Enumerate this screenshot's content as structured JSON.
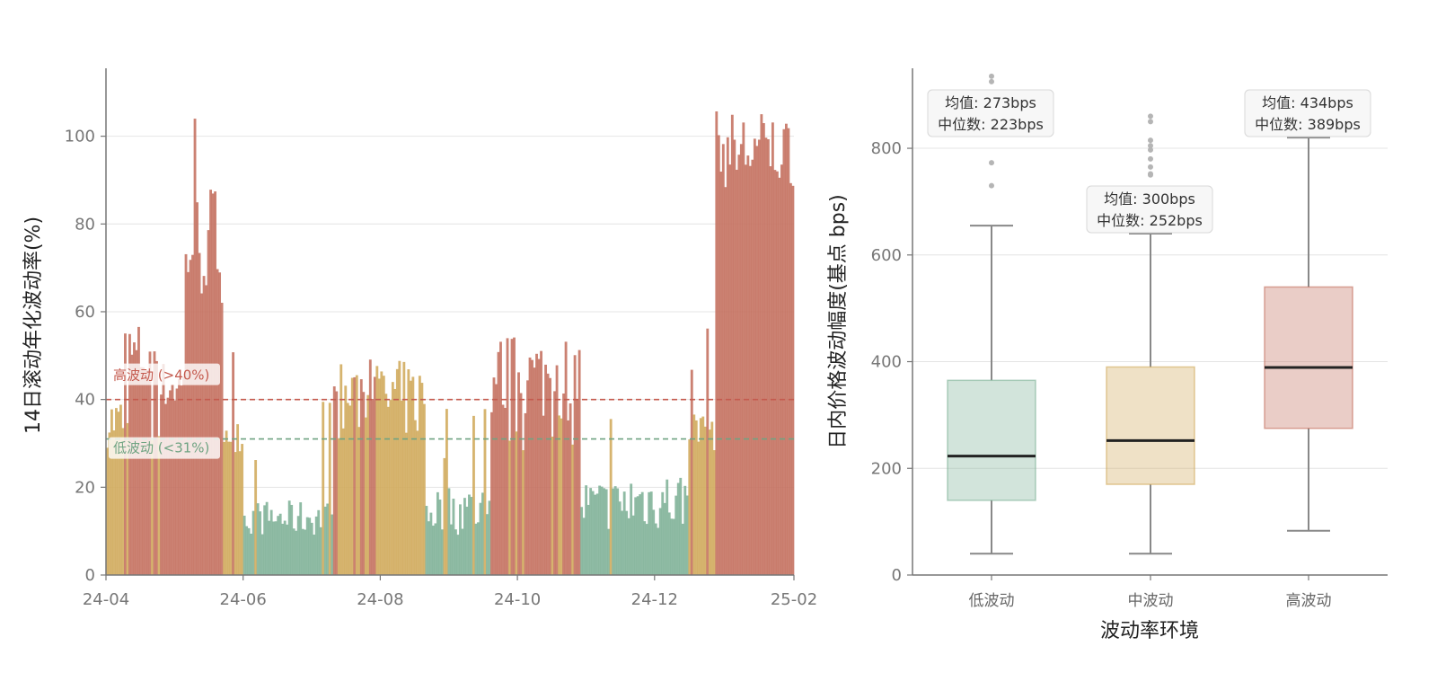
{
  "colors": {
    "low": "#7fb297",
    "mid": "#d0aa5b",
    "high": "#c4705e",
    "low_threshold": "#6fa382",
    "high_threshold": "#c45a4e",
    "axis": "#777777",
    "grid": "#e4e4e4"
  },
  "chart_data": [
    {
      "type": "bar",
      "ylabel": "14日滚动年化波动率(%)",
      "xlabel": "",
      "ylim": [
        0,
        112
      ],
      "yticks": [
        0,
        20,
        40,
        60,
        80,
        100
      ],
      "xlim": [
        "2024-04-01",
        "2025-02-01"
      ],
      "x_ticks": [
        {
          "date": "2024-04-01",
          "label": "24-04"
        },
        {
          "date": "2024-06-01",
          "label": "24-06"
        },
        {
          "date": "2024-08-01",
          "label": "24-08"
        },
        {
          "date": "2024-10-01",
          "label": "24-10"
        },
        {
          "date": "2024-12-01",
          "label": "24-12"
        },
        {
          "date": "2025-02-01",
          "label": "25-02"
        }
      ],
      "grid": true,
      "thresholds": [
        {
          "value": 40,
          "label": "高波动 (>40%)",
          "regime": "high"
        },
        {
          "value": 31,
          "label": "低波动 (<31%)",
          "regime": "low"
        }
      ],
      "series_segments": [
        {
          "from": "2024-04-01",
          "to": "2024-04-10",
          "regime": "mid",
          "level": 35,
          "noise": 6
        },
        {
          "from": "2024-04-11",
          "to": "2024-04-24",
          "regime": "high",
          "level": 50,
          "noise": 8
        },
        {
          "from": "2024-04-25",
          "to": "2024-05-05",
          "regime": "high",
          "level": 43,
          "noise": 6
        },
        {
          "from": "2024-05-06",
          "to": "2024-05-22",
          "regime": "high",
          "level": 76,
          "noise": 14
        },
        {
          "from": "2024-05-23",
          "to": "2024-05-31",
          "regime": "mid",
          "level": 33,
          "noise": 5
        },
        {
          "from": "2024-06-01",
          "to": "2024-06-29",
          "regime": "low",
          "level": 13,
          "noise": 4
        },
        {
          "from": "2024-06-30",
          "to": "2024-07-10",
          "regime": "low",
          "level": 13,
          "noise": 4
        },
        {
          "from": "2024-07-11",
          "to": "2024-08-20",
          "regime": "mid",
          "level": 40,
          "noise": 9
        },
        {
          "from": "2024-08-21",
          "to": "2024-09-18",
          "regime": "low",
          "level": 15,
          "noise": 6
        },
        {
          "from": "2024-09-19",
          "to": "2024-10-28",
          "regime": "high",
          "level": 45,
          "noise": 10
        },
        {
          "from": "2024-10-29",
          "to": "2024-11-19",
          "regime": "low",
          "level": 16,
          "noise": 6
        },
        {
          "from": "2024-11-20",
          "to": "2024-12-15",
          "regime": "low",
          "level": 17,
          "noise": 7
        },
        {
          "from": "2024-12-16",
          "to": "2024-12-27",
          "regime": "mid",
          "level": 33,
          "noise": 5
        },
        {
          "from": "2024-12-28",
          "to": "2025-01-31",
          "regime": "high",
          "level": 97,
          "noise": 9
        }
      ],
      "peak": 104
    },
    {
      "type": "box",
      "xlabel": "波动率环境",
      "ylabel": "日内价格波动幅度(基点 bps)",
      "ylim": [
        0,
        950
      ],
      "yticks": [
        0,
        200,
        400,
        600,
        800
      ],
      "grid": true,
      "categories": [
        "低波动",
        "中波动",
        "高波动"
      ],
      "boxes": [
        {
          "category": "低波动",
          "regime": "low",
          "whisker_low": 40,
          "q1": 140,
          "median": 223,
          "q3": 365,
          "whisker_high": 655,
          "mean": 273,
          "outliers": [
            730,
            773,
            925,
            935
          ],
          "mean_label": "均值: 273bps",
          "median_label": "中位数: 223bps"
        },
        {
          "category": "中波动",
          "regime": "mid",
          "whisker_low": 40,
          "q1": 170,
          "median": 252,
          "q3": 390,
          "whisker_high": 640,
          "mean": 300,
          "outliers": [
            750,
            752,
            765,
            780,
            797,
            805,
            815,
            850,
            860
          ],
          "mean_label": "均值: 300bps",
          "median_label": "中位数: 252bps"
        },
        {
          "category": "高波动",
          "regime": "high",
          "whisker_low": 83,
          "q1": 275,
          "median": 389,
          "q3": 540,
          "whisker_high": 820,
          "mean": 434,
          "outliers": [],
          "mean_label": "均值: 434bps",
          "median_label": "中位数: 389bps"
        }
      ]
    }
  ]
}
